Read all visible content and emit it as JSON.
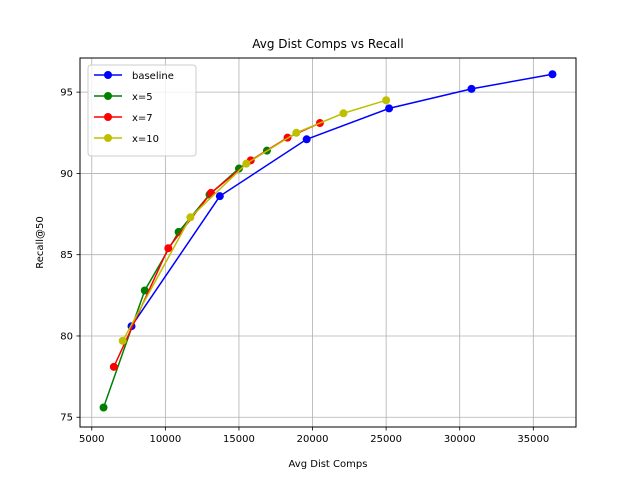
{
  "chart_data": {
    "type": "line",
    "title": "Avg Dist Comps vs Recall",
    "xlabel": "Avg Dist Comps",
    "ylabel": "Recall@50",
    "xlim": [
      4200,
      37900
    ],
    "ylim": [
      74.4,
      97.1
    ],
    "xticks": [
      5000,
      10000,
      15000,
      20000,
      25000,
      30000,
      35000
    ],
    "yticks": [
      75,
      80,
      85,
      90,
      95
    ],
    "grid": true,
    "legend_position": "top-left",
    "series": [
      {
        "name": "baseline",
        "color": "#0000ff",
        "x": [
          7700,
          13700,
          19600,
          25200,
          30800,
          36300
        ],
        "y": [
          80.6,
          88.6,
          92.1,
          94.0,
          95.2,
          96.1
        ]
      },
      {
        "name": "x=5",
        "color": "#008000",
        "x": [
          5800,
          8600,
          10900,
          13000,
          15000,
          16900
        ],
        "y": [
          75.6,
          82.8,
          86.4,
          88.7,
          90.3,
          91.4
        ]
      },
      {
        "name": "x=7",
        "color": "#ff0000",
        "x": [
          6500,
          10200,
          13100,
          15800,
          18300,
          20500
        ],
        "y": [
          78.1,
          85.4,
          88.8,
          90.8,
          92.2,
          93.1
        ]
      },
      {
        "name": "x=10",
        "color": "#bfbf00",
        "x": [
          7100,
          11700,
          15500,
          18900,
          22100,
          25000
        ],
        "y": [
          79.7,
          87.3,
          90.6,
          92.5,
          93.7,
          94.5
        ]
      }
    ]
  }
}
